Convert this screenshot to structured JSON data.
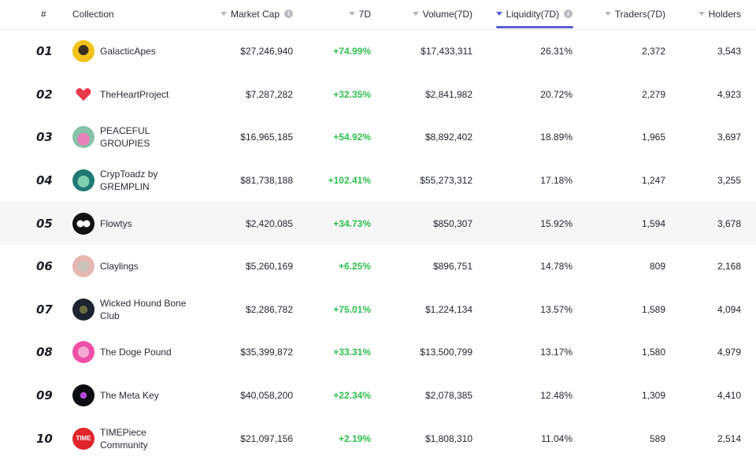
{
  "header": {
    "rank": "#",
    "collection": "Collection",
    "market_cap": "Market Cap",
    "seven_d": "7D",
    "volume": "Volume(7D)",
    "liquidity": "Liquidity(7D)",
    "traders": "Traders(7D)",
    "holders": "Holders",
    "info_glyph": "i"
  },
  "colors": {
    "accent": "#5b5fd6",
    "positive": "#2fbf4f",
    "highlight_row": "#f6f6f7"
  },
  "rows": [
    {
      "rank": "01",
      "name": "GalacticApes",
      "avatar": "ape-avatar",
      "market_cap": "$27,246,940",
      "change": "+74.99%",
      "volume": "$17,433,311",
      "liquidity": "26.31%",
      "traders": "2,372",
      "holders": "3,543"
    },
    {
      "rank": "02",
      "name": "TheHeartProject",
      "avatar": "heart-avatar",
      "market_cap": "$7,287,282",
      "change": "+32.35%",
      "volume": "$2,841,982",
      "liquidity": "20.72%",
      "traders": "2,279",
      "holders": "4,923"
    },
    {
      "rank": "03",
      "name": "PEACEFUL GROUPIES",
      "avatar": "groupie-avatar",
      "market_cap": "$16,965,185",
      "change": "+54.92%",
      "volume": "$8,892,402",
      "liquidity": "18.89%",
      "traders": "1,965",
      "holders": "3,697"
    },
    {
      "rank": "04",
      "name": "CrypToadz by GREMPLIN",
      "avatar": "toad-avatar",
      "market_cap": "$81,738,188",
      "change": "+102.41%",
      "volume": "$55,273,312",
      "liquidity": "17.18%",
      "traders": "1,247",
      "holders": "3,255"
    },
    {
      "rank": "05",
      "name": "Flowtys",
      "avatar": "flowty-avatar",
      "market_cap": "$2,420,085",
      "change": "+34.73%",
      "volume": "$850,307",
      "liquidity": "15.92%",
      "traders": "1,594",
      "holders": "3,678"
    },
    {
      "rank": "06",
      "name": "Claylings",
      "avatar": "clayling-avatar",
      "market_cap": "$5,260,169",
      "change": "+6.25%",
      "volume": "$896,751",
      "liquidity": "14.78%",
      "traders": "809",
      "holders": "2,168"
    },
    {
      "rank": "07",
      "name": "Wicked Hound Bone Club",
      "avatar": "hound-avatar",
      "market_cap": "$2,286,782",
      "change": "+75.01%",
      "volume": "$1,224,134",
      "liquidity": "13.57%",
      "traders": "1,589",
      "holders": "4,094"
    },
    {
      "rank": "08",
      "name": "The Doge Pound",
      "avatar": "doge-avatar",
      "market_cap": "$35,399,872",
      "change": "+33.31%",
      "volume": "$13,500,799",
      "liquidity": "13.17%",
      "traders": "1,580",
      "holders": "4,979"
    },
    {
      "rank": "09",
      "name": "The Meta Key",
      "avatar": "key-avatar",
      "market_cap": "$40,058,200",
      "change": "+22.34%",
      "volume": "$2,078,385",
      "liquidity": "12.48%",
      "traders": "1,309",
      "holders": "4,410"
    },
    {
      "rank": "10",
      "name": "TIMEPiece Community",
      "avatar": "time-avatar",
      "avatar_text": "TIME",
      "market_cap": "$21,097,156",
      "change": "+2.19%",
      "volume": "$1,808,310",
      "liquidity": "11.04%",
      "traders": "589",
      "holders": "2,514"
    }
  ]
}
